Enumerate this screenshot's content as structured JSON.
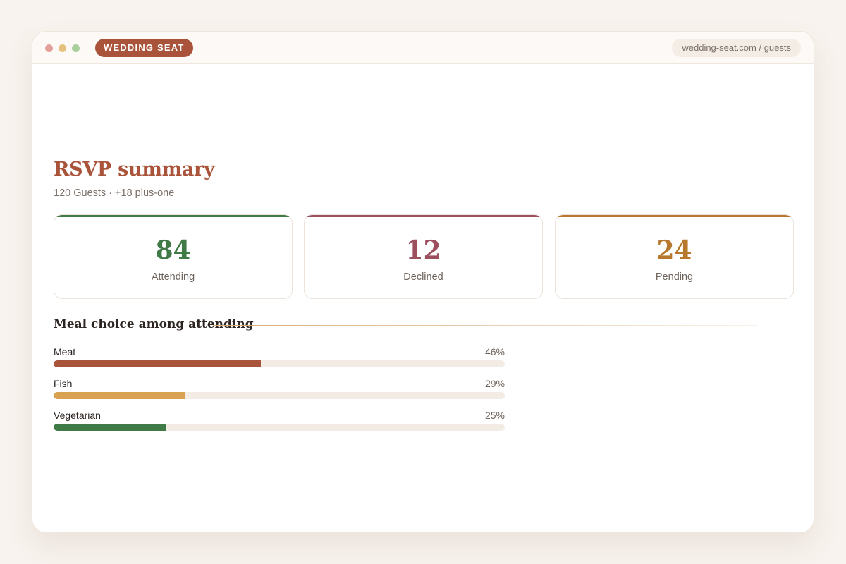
{
  "app": {
    "brand": "WEDDING SEAT",
    "url": "wedding-seat.com / guests"
  },
  "summary": {
    "title": "RSVP summary",
    "subtitle": "120 Guests · +18 plus-one",
    "cards": [
      {
        "value": "84",
        "label": "Attending",
        "color": "#3f7a47"
      },
      {
        "value": "12",
        "label": "Declined",
        "color": "#9c4f5f"
      },
      {
        "value": "24",
        "label": "Pending",
        "color": "#b7782e"
      }
    ]
  },
  "meals": {
    "title": "Meal choice among attending",
    "items": [
      {
        "name": "Meat",
        "percent_label": "46%",
        "percent": 46,
        "color": "#a9533a"
      },
      {
        "name": "Fish",
        "percent_label": "29%",
        "percent": 29,
        "color": "#d8a252"
      },
      {
        "name": "Vegetarian",
        "percent_label": "25%",
        "percent": 25,
        "color": "#3f7a47"
      }
    ]
  }
}
